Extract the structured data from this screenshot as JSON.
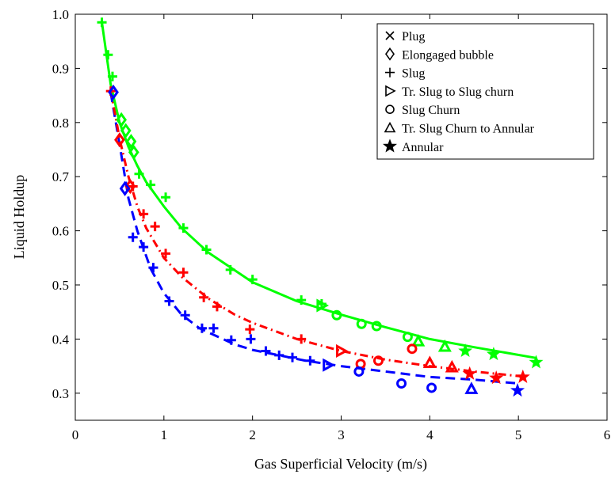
{
  "chart_data": {
    "type": "scatter",
    "xlabel": "Gas Superficial Velocity (m/s)",
    "ylabel": "Liquid Holdup",
    "xlim": [
      0,
      6
    ],
    "ylim": [
      0.25,
      1.0
    ],
    "x_ticks": [
      0,
      1,
      2,
      3,
      4,
      5,
      6
    ],
    "y_ticks": [
      0.3,
      0.4,
      0.5,
      0.6,
      0.7,
      0.8,
      0.9,
      1.0
    ],
    "x_tick_labels": [
      "0",
      "1",
      "2",
      "3",
      "4",
      "5",
      "6"
    ],
    "y_tick_labels": [
      "0.3",
      "0.4",
      "0.5",
      "0.6",
      "0.7",
      "0.8",
      "0.9",
      "1.0"
    ],
    "grid": false,
    "legend_position": "top-right",
    "legend": [
      {
        "marker": "x",
        "label": "Plug"
      },
      {
        "marker": "diamond",
        "label": "Elongaged bubble"
      },
      {
        "marker": "plus",
        "label": "Slug"
      },
      {
        "marker": "triangle-right",
        "label": "Tr. Slug to Slug churn"
      },
      {
        "marker": "circle",
        "label": "Slug Churn"
      },
      {
        "marker": "triangle-up",
        "label": "Tr. Slug Churn to Annular"
      },
      {
        "marker": "star",
        "label": "Annular"
      }
    ],
    "curves": [
      {
        "color": "#0000ff",
        "style": "dashed",
        "x": [
          0.4,
          0.5,
          0.6,
          0.7,
          0.85,
          1.0,
          1.2,
          1.4,
          1.6,
          1.8,
          2.0,
          2.3,
          2.6,
          3.0,
          3.5,
          4.0,
          4.5,
          5.0
        ],
        "y": [
          0.855,
          0.76,
          0.66,
          0.6,
          0.53,
          0.485,
          0.445,
          0.42,
          0.405,
          0.39,
          0.38,
          0.37,
          0.36,
          0.35,
          0.34,
          0.33,
          0.325,
          0.318
        ]
      },
      {
        "color": "#ff0000",
        "style": "dashdot",
        "x": [
          0.4,
          0.5,
          0.6,
          0.7,
          0.8,
          1.0,
          1.2,
          1.5,
          1.8,
          2.0,
          2.5,
          3.0,
          3.5,
          4.0,
          4.5,
          5.1
        ],
        "y": [
          0.86,
          0.77,
          0.7,
          0.645,
          0.605,
          0.55,
          0.515,
          0.475,
          0.445,
          0.43,
          0.4,
          0.378,
          0.362,
          0.35,
          0.34,
          0.33
        ]
      },
      {
        "color": "#00ff00",
        "style": "solid",
        "x": [
          0.3,
          0.4,
          0.5,
          0.6,
          0.7,
          0.8,
          1.0,
          1.2,
          1.5,
          2.0,
          2.5,
          3.0,
          3.5,
          4.0,
          4.5,
          5.2
        ],
        "y": [
          0.985,
          0.87,
          0.8,
          0.755,
          0.72,
          0.69,
          0.645,
          0.605,
          0.56,
          0.505,
          0.47,
          0.445,
          0.422,
          0.4,
          0.385,
          0.365
        ]
      }
    ],
    "series": [
      {
        "color": "#00ff00",
        "marker": "plus",
        "x": [
          0.3,
          0.37,
          0.42,
          0.72,
          0.85,
          1.02,
          1.22,
          1.48,
          1.75,
          2.0,
          2.55,
          2.78
        ],
        "y": [
          0.985,
          0.925,
          0.885,
          0.705,
          0.685,
          0.662,
          0.605,
          0.565,
          0.528,
          0.51,
          0.472,
          0.465
        ]
      },
      {
        "color": "#00ff00",
        "marker": "diamond",
        "x": [
          0.52,
          0.57,
          0.63,
          0.66
        ],
        "y": [
          0.805,
          0.785,
          0.765,
          0.745
        ]
      },
      {
        "color": "#00ff00",
        "marker": "triangle-right",
        "x": [
          2.78
        ],
        "y": [
          0.462
        ]
      },
      {
        "color": "#00ff00",
        "marker": "circle",
        "x": [
          2.95,
          3.23,
          3.4,
          3.75
        ],
        "y": [
          0.444,
          0.428,
          0.424,
          0.404
        ]
      },
      {
        "color": "#00ff00",
        "marker": "triangle-up",
        "x": [
          3.87,
          4.17
        ],
        "y": [
          0.396,
          0.386
        ]
      },
      {
        "color": "#00ff00",
        "marker": "star",
        "x": [
          4.4,
          4.72,
          5.2
        ],
        "y": [
          0.378,
          0.372,
          0.357
        ]
      },
      {
        "color": "#ff0000",
        "marker": "plus",
        "x": [
          0.4,
          0.65,
          0.77,
          0.9,
          1.02,
          1.22,
          1.45,
          1.6,
          1.97,
          2.55
        ],
        "y": [
          0.858,
          0.682,
          0.631,
          0.608,
          0.558,
          0.523,
          0.477,
          0.46,
          0.418,
          0.4
        ]
      },
      {
        "color": "#ff0000",
        "marker": "diamond",
        "x": [
          0.5,
          0.62
        ],
        "y": [
          0.768,
          0.682
        ]
      },
      {
        "color": "#ff0000",
        "marker": "triangle-right",
        "x": [
          3.0
        ],
        "y": [
          0.378
        ]
      },
      {
        "color": "#ff0000",
        "marker": "circle",
        "x": [
          3.22,
          3.42,
          3.8
        ],
        "y": [
          0.354,
          0.36,
          0.382
        ]
      },
      {
        "color": "#ff0000",
        "marker": "triangle-up",
        "x": [
          4.0,
          4.25
        ],
        "y": [
          0.356,
          0.348
        ]
      },
      {
        "color": "#ff0000",
        "marker": "star",
        "x": [
          4.45,
          4.75,
          5.05
        ],
        "y": [
          0.336,
          0.328,
          0.33
        ]
      },
      {
        "color": "#0000ff",
        "marker": "plus",
        "x": [
          0.65,
          0.77,
          0.88,
          1.06,
          1.24,
          1.43,
          1.56,
          1.76,
          1.98,
          2.15,
          2.3,
          2.45,
          2.65
        ],
        "y": [
          0.588,
          0.57,
          0.532,
          0.47,
          0.444,
          0.42,
          0.42,
          0.398,
          0.4,
          0.378,
          0.37,
          0.366,
          0.36
        ]
      },
      {
        "color": "#0000ff",
        "marker": "diamond",
        "x": [
          0.43,
          0.56
        ],
        "y": [
          0.856,
          0.678
        ]
      },
      {
        "color": "#0000ff",
        "marker": "triangle-right",
        "x": [
          2.85
        ],
        "y": [
          0.352
        ]
      },
      {
        "color": "#0000ff",
        "marker": "circle",
        "x": [
          3.2,
          3.68,
          4.02
        ],
        "y": [
          0.34,
          0.318,
          0.31
        ]
      },
      {
        "color": "#0000ff",
        "marker": "triangle-up",
        "x": [
          4.47
        ],
        "y": [
          0.308
        ]
      },
      {
        "color": "#0000ff",
        "marker": "star",
        "x": [
          4.99
        ],
        "y": [
          0.305
        ]
      }
    ]
  }
}
